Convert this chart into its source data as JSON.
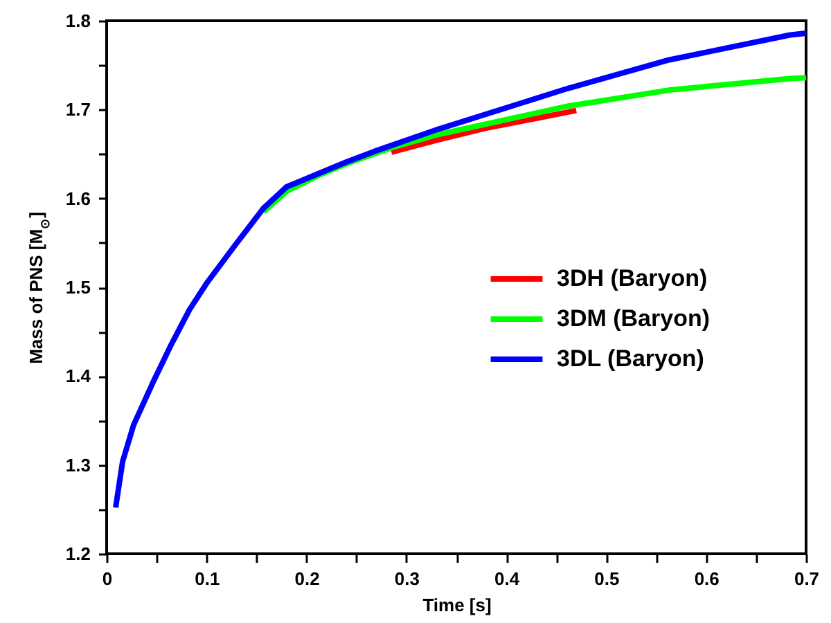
{
  "chart_data": {
    "type": "line",
    "xlabel": "Time [s]",
    "ylabel": "Mass of PNS [M$_{⊙}$]",
    "xlim": [
      0,
      0.7
    ],
    "ylim": [
      1.2,
      1.8
    ],
    "xticks": [
      0,
      {
        "value": 0.05,
        "label": null
      },
      0.1,
      {
        "value": 0.15,
        "label": null
      },
      0.2,
      {
        "value": 0.25,
        "label": null
      },
      0.3,
      {
        "value": 0.35,
        "label": null
      },
      0.4,
      {
        "value": 0.45,
        "label": null
      },
      0.5,
      {
        "value": 0.55,
        "label": null
      },
      0.6,
      {
        "value": 0.65,
        "label": null
      },
      0.7
    ],
    "yticks": [
      1.2,
      {
        "value": 1.25,
        "label": null
      },
      1.3,
      {
        "value": 1.35,
        "label": null
      },
      1.4,
      {
        "value": 1.45,
        "label": null
      },
      1.5,
      {
        "value": 1.55,
        "label": null
      },
      1.6,
      {
        "value": 1.65,
        "label": null
      },
      1.7,
      {
        "value": 1.75,
        "label": null
      },
      1.8
    ],
    "legend": "right",
    "grid": false,
    "line_style": "solid",
    "marker": "none",
    "series": [
      {
        "name": "3DH (Baryon)",
        "color": "#ff0000",
        "x": [
          0.285,
          0.332,
          0.379,
          0.47
        ],
        "values": [
          1.652,
          1.666,
          1.679,
          1.699
        ]
      },
      {
        "name": "3DM (Baryon)",
        "color": "#00ff00",
        "x": [
          0.157,
          0.18,
          0.212,
          0.24,
          0.285,
          0.332,
          0.462,
          0.563,
          0.684,
          0.7
        ],
        "values": [
          1.585,
          1.608,
          1.626,
          1.639,
          1.657,
          1.672,
          1.704,
          1.722,
          1.735,
          1.736
        ]
      },
      {
        "name": "3DL (Baryon)",
        "color": "#0000ff",
        "x": [
          0.009,
          0.016,
          0.027,
          0.046,
          0.064,
          0.083,
          0.101,
          0.129,
          0.157,
          0.18,
          0.212,
          0.24,
          0.268,
          0.332,
          0.462,
          0.563,
          0.684,
          0.7
        ],
        "values": [
          1.252,
          1.304,
          1.345,
          1.392,
          1.434,
          1.475,
          1.506,
          1.548,
          1.589,
          1.613,
          1.628,
          1.641,
          1.653,
          1.678,
          1.724,
          1.756,
          1.784,
          1.786
        ]
      }
    ]
  }
}
